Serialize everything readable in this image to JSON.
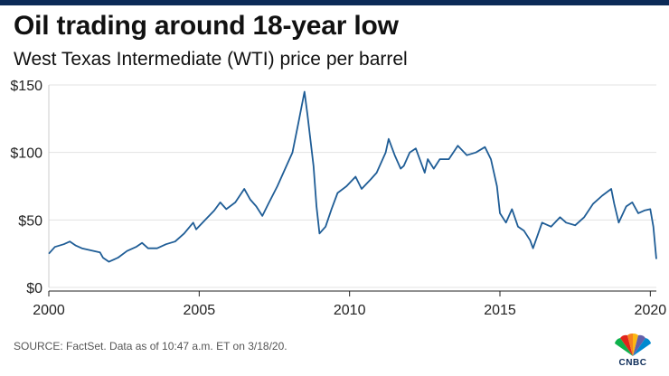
{
  "header": {
    "title": "Oil trading around 18-year low",
    "subtitle": "West Texas Intermediate (WTI) price per barrel"
  },
  "footer": {
    "source": "SOURCE: FactSet. Data as of 10:47 a.m. ET on 3/18/20.",
    "logo_text": "CNBC"
  },
  "colors": {
    "line": "#1f5d96",
    "grid": "#e3e3e3",
    "brand_bar": "#0b2a57"
  },
  "chart_data": {
    "type": "line",
    "title": "Oil trading around 18-year low",
    "subtitle": "West Texas Intermediate (WTI) price per barrel",
    "xlabel": "",
    "ylabel": "",
    "xlim": [
      2000,
      2020.2
    ],
    "ylim": [
      0,
      150
    ],
    "x_ticks": [
      2000,
      2005,
      2010,
      2015,
      2020
    ],
    "x_tick_labels": [
      "2000",
      "2005",
      "2010",
      "2015",
      "2020"
    ],
    "y_ticks": [
      0,
      50,
      100,
      150
    ],
    "y_tick_labels": [
      "$0",
      "$50",
      "$100",
      "$150"
    ],
    "grid": "horizontal",
    "series": [
      {
        "x": [
          2000.0,
          2000.2,
          2000.5,
          2000.7,
          2000.9,
          2001.1,
          2001.5,
          2001.7,
          2001.8,
          2002.0,
          2002.3,
          2002.6,
          2002.9,
          2003.1,
          2003.3,
          2003.6,
          2003.9,
          2004.2,
          2004.5,
          2004.8,
          2004.9,
          2005.2,
          2005.5,
          2005.7,
          2005.9,
          2006.2,
          2006.5,
          2006.7,
          2006.9,
          2007.1,
          2007.3,
          2007.6,
          2007.9,
          2008.1,
          2008.3,
          2008.5,
          2008.6,
          2008.8,
          2008.9,
          2009.0,
          2009.2,
          2009.4,
          2009.6,
          2009.9,
          2010.2,
          2010.4,
          2010.7,
          2010.9,
          2011.2,
          2011.3,
          2011.5,
          2011.7,
          2011.8,
          2012.0,
          2012.2,
          2012.5,
          2012.6,
          2012.8,
          2013.0,
          2013.3,
          2013.6,
          2013.9,
          2014.2,
          2014.5,
          2014.7,
          2014.9,
          2015.0,
          2015.2,
          2015.4,
          2015.6,
          2015.8,
          2016.0,
          2016.1,
          2016.4,
          2016.7,
          2017.0,
          2017.2,
          2017.5,
          2017.8,
          2018.1,
          2018.4,
          2018.7,
          2018.8,
          2018.95,
          2019.2,
          2019.4,
          2019.6,
          2019.8,
          2020.0,
          2020.1,
          2020.2
        ],
        "y": [
          25,
          30,
          32,
          34,
          31,
          29,
          27,
          26,
          22,
          19,
          22,
          27,
          30,
          33,
          29,
          29,
          32,
          34,
          40,
          48,
          43,
          50,
          57,
          63,
          58,
          63,
          73,
          65,
          60,
          53,
          62,
          75,
          90,
          100,
          122,
          145,
          128,
          90,
          60,
          40,
          45,
          58,
          70,
          75,
          82,
          73,
          80,
          85,
          100,
          110,
          98,
          88,
          90,
          100,
          103,
          85,
          95,
          88,
          95,
          95,
          105,
          98,
          100,
          104,
          95,
          75,
          55,
          48,
          58,
          45,
          42,
          35,
          29,
          48,
          45,
          52,
          48,
          46,
          52,
          62,
          68,
          73,
          62,
          48,
          60,
          63,
          55,
          57,
          58,
          45,
          21
        ]
      }
    ]
  }
}
